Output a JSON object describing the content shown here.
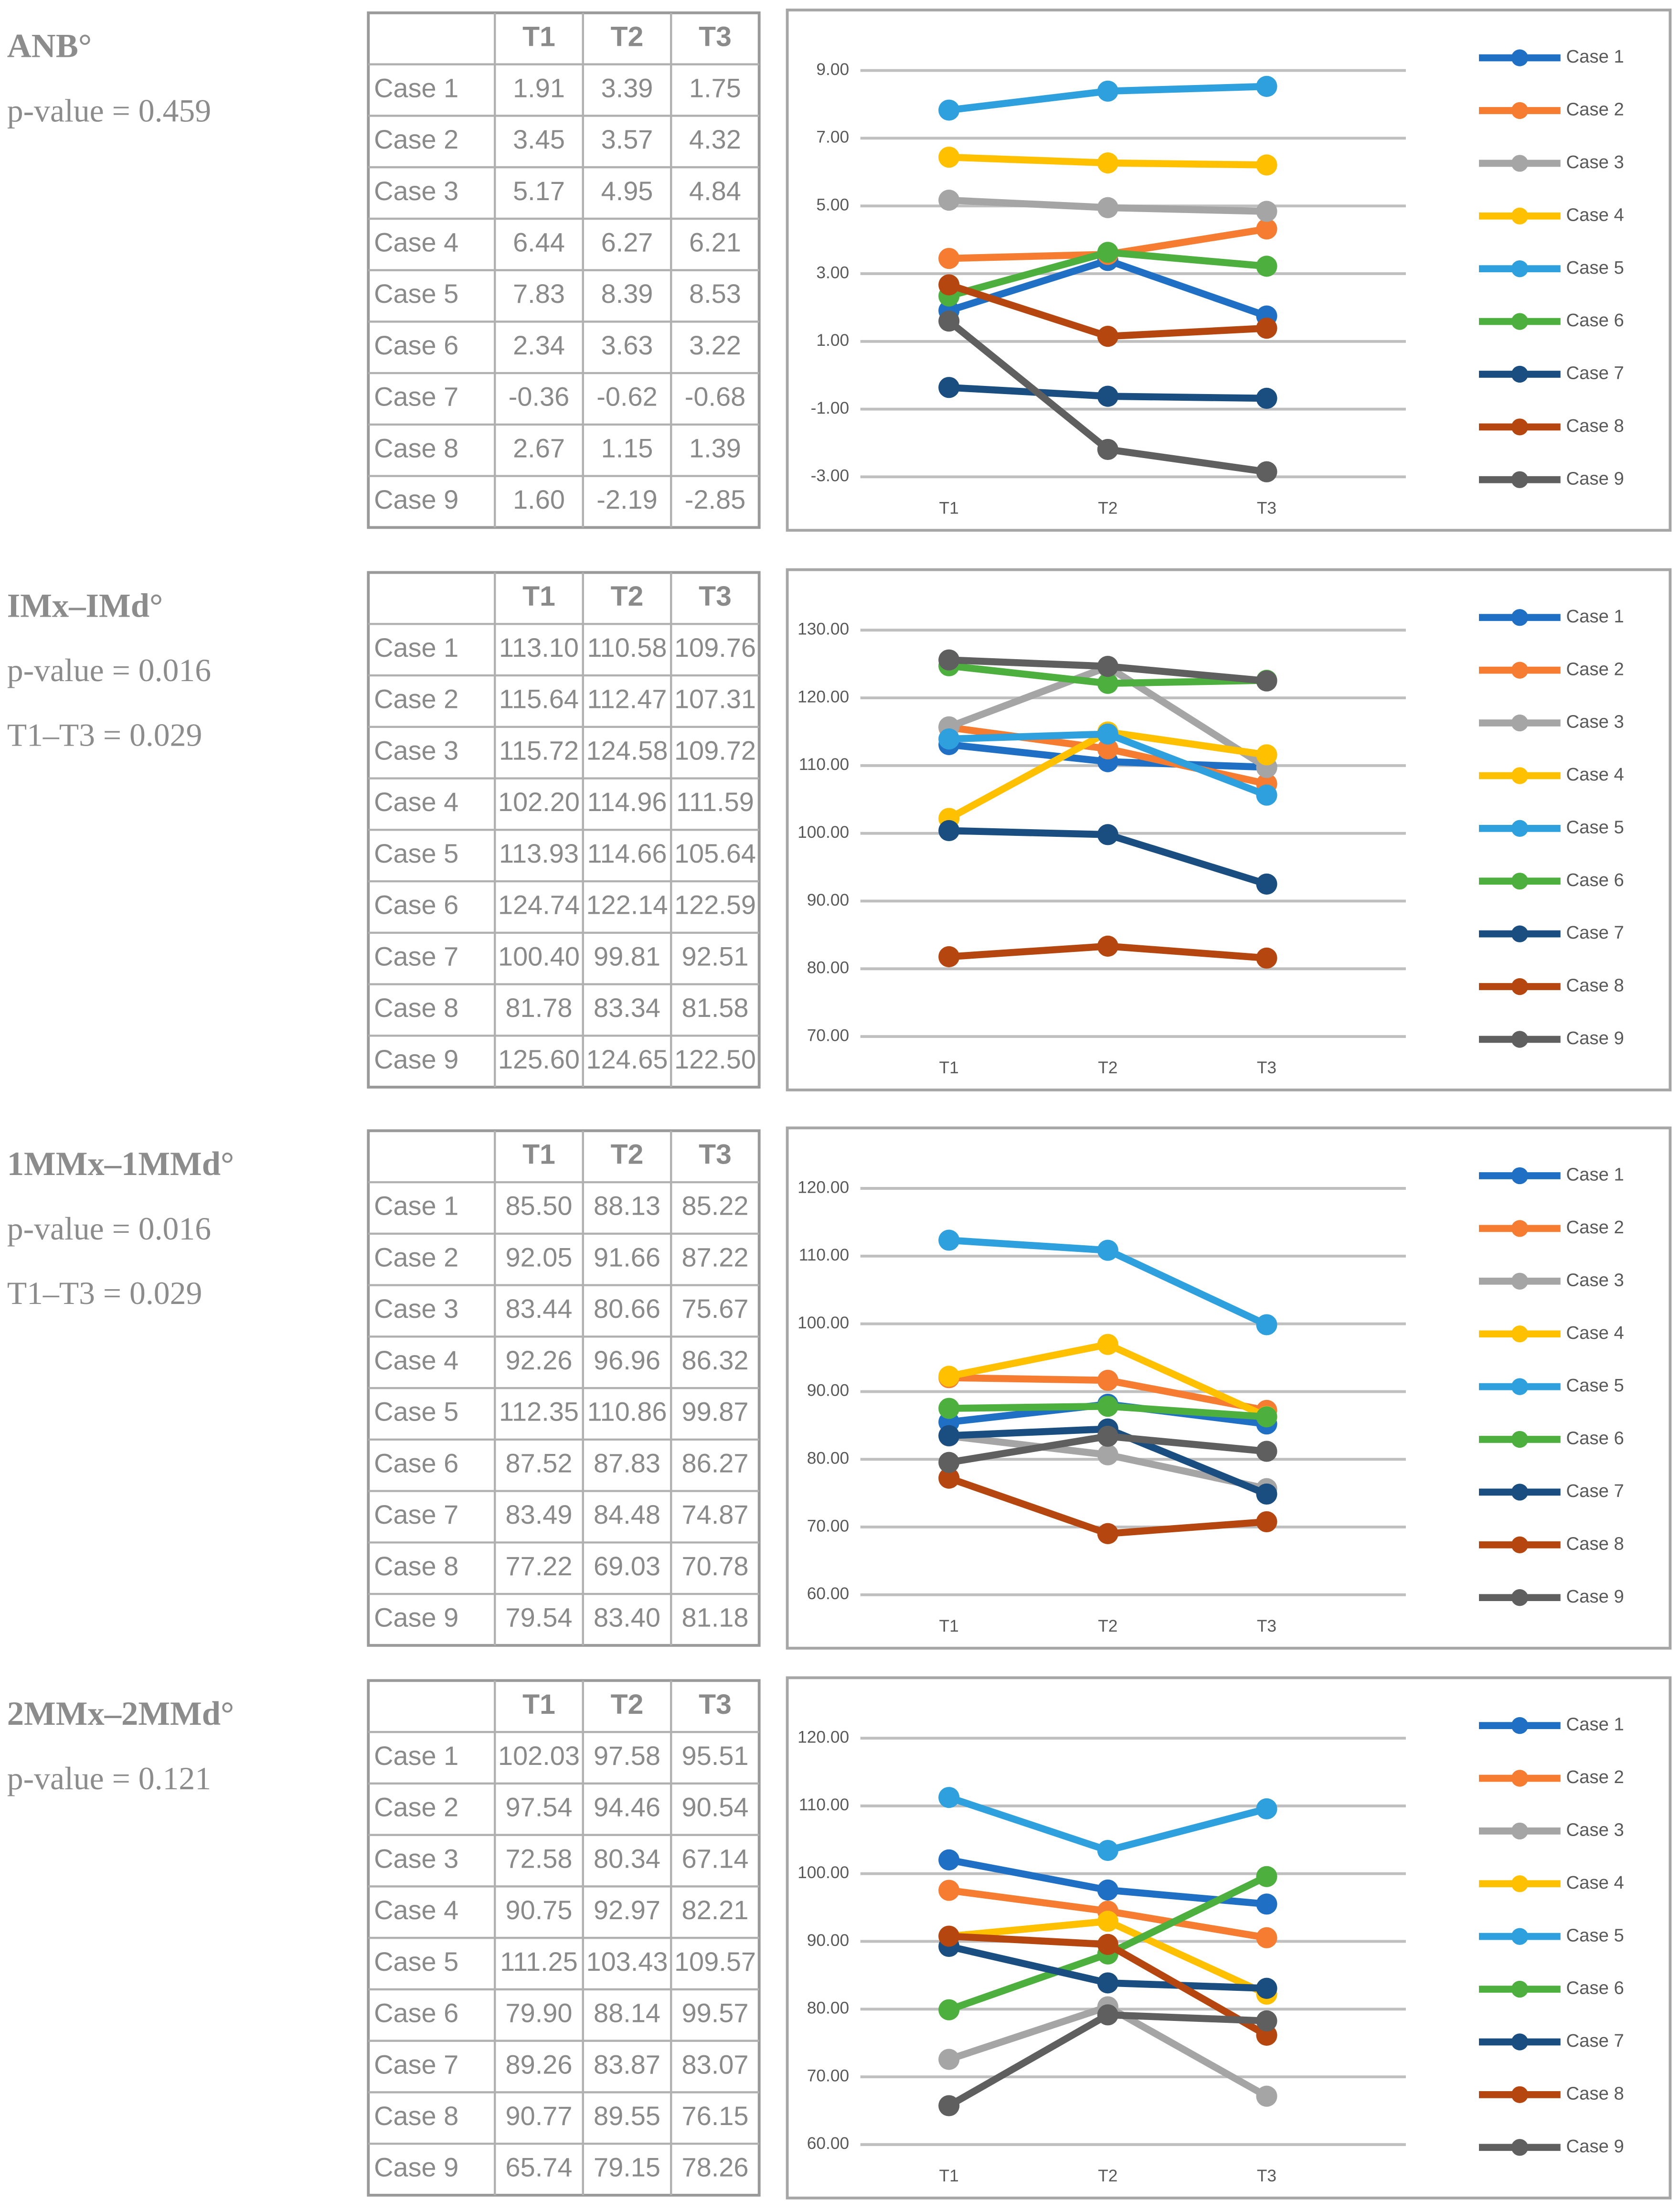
{
  "chart_data": [
    {
      "type": "line",
      "title": "ANB°",
      "annotations": [
        "p-value = 0.459"
      ],
      "categories": [
        "T1",
        "T2",
        "T3"
      ],
      "ylim": [
        -3,
        9
      ],
      "yticks": [
        {
          "value": -3,
          "label": "-3.00"
        },
        {
          "value": -1,
          "label": "-1.00"
        },
        {
          "value": 1,
          "label": "1.00"
        },
        {
          "value": 3,
          "label": "3.00"
        },
        {
          "value": 5,
          "label": "5.00"
        },
        {
          "value": 7,
          "label": "7.00"
        },
        {
          "value": 9,
          "label": "9.00"
        }
      ],
      "grid": true,
      "series": [
        {
          "name": "Case 1",
          "color": "#1f6fc5",
          "values": [
            1.91,
            3.39,
            1.75
          ],
          "value_labels": [
            "1.91",
            "3.39",
            "1.75"
          ]
        },
        {
          "name": "Case 2",
          "color": "#f57c30",
          "values": [
            3.45,
            3.57,
            4.32
          ],
          "value_labels": [
            "3.45",
            "3.57",
            "4.32"
          ]
        },
        {
          "name": "Case 3",
          "color": "#a5a5a5",
          "values": [
            5.17,
            4.95,
            4.84
          ],
          "value_labels": [
            "5.17",
            "4.95",
            "4.84"
          ]
        },
        {
          "name": "Case 4",
          "color": "#ffc000",
          "values": [
            6.44,
            6.27,
            6.21
          ],
          "value_labels": [
            "6.44",
            "6.27",
            "6.21"
          ]
        },
        {
          "name": "Case 5",
          "color": "#2ea0de",
          "values": [
            7.83,
            8.39,
            8.53
          ],
          "value_labels": [
            "7.83",
            "8.39",
            "8.53"
          ]
        },
        {
          "name": "Case 6",
          "color": "#4caf3e",
          "values": [
            2.34,
            3.63,
            3.22
          ],
          "value_labels": [
            "2.34",
            "3.63",
            "3.22"
          ]
        },
        {
          "name": "Case 7",
          "color": "#1a4d80",
          "values": [
            -0.36,
            -0.62,
            -0.68
          ],
          "value_labels": [
            "-0.36",
            "-0.62",
            "-0.68"
          ]
        },
        {
          "name": "Case 8",
          "color": "#b5460f",
          "values": [
            2.67,
            1.15,
            1.39
          ],
          "value_labels": [
            "2.67",
            "1.15",
            "1.39"
          ]
        },
        {
          "name": "Case 9",
          "color": "#5f5f5f",
          "values": [
            1.6,
            -2.19,
            -2.85
          ],
          "value_labels": [
            "1.60",
            "-2.19",
            "-2.85"
          ]
        }
      ]
    },
    {
      "type": "line",
      "title": "IMx–IMd°",
      "annotations": [
        "p-value = 0.016",
        "T1–T3 = 0.029"
      ],
      "categories": [
        "T1",
        "T2",
        "T3"
      ],
      "ylim": [
        70,
        130
      ],
      "yticks": [
        {
          "value": 70,
          "label": "70.00"
        },
        {
          "value": 80,
          "label": "80.00"
        },
        {
          "value": 90,
          "label": "90.00"
        },
        {
          "value": 100,
          "label": "100.00"
        },
        {
          "value": 110,
          "label": "110.00"
        },
        {
          "value": 120,
          "label": "120.00"
        },
        {
          "value": 130,
          "label": "130.00"
        }
      ],
      "grid": true,
      "series": [
        {
          "name": "Case 1",
          "color": "#1f6fc5",
          "values": [
            113.1,
            110.58,
            109.76
          ],
          "value_labels": [
            "113.10",
            "110.58",
            "109.76"
          ]
        },
        {
          "name": "Case 2",
          "color": "#f57c30",
          "values": [
            115.64,
            112.47,
            107.31
          ],
          "value_labels": [
            "115.64",
            "112.47",
            "107.31"
          ]
        },
        {
          "name": "Case 3",
          "color": "#a5a5a5",
          "values": [
            115.72,
            124.58,
            109.72
          ],
          "value_labels": [
            "115.72",
            "124.58",
            "109.72"
          ]
        },
        {
          "name": "Case 4",
          "color": "#ffc000",
          "values": [
            102.2,
            114.96,
            111.59
          ],
          "value_labels": [
            "102.20",
            "114.96",
            "111.59"
          ]
        },
        {
          "name": "Case 5",
          "color": "#2ea0de",
          "values": [
            113.93,
            114.66,
            105.64
          ],
          "value_labels": [
            "113.93",
            "114.66",
            "105.64"
          ]
        },
        {
          "name": "Case 6",
          "color": "#4caf3e",
          "values": [
            124.74,
            122.14,
            122.59
          ],
          "value_labels": [
            "124.74",
            "122.14",
            "122.59"
          ]
        },
        {
          "name": "Case 7",
          "color": "#1a4d80",
          "values": [
            100.4,
            99.81,
            92.51
          ],
          "value_labels": [
            "100.40",
            "99.81",
            "92.51"
          ]
        },
        {
          "name": "Case 8",
          "color": "#b5460f",
          "values": [
            81.78,
            83.34,
            81.58
          ],
          "value_labels": [
            "81.78",
            "83.34",
            "81.58"
          ]
        },
        {
          "name": "Case 9",
          "color": "#5f5f5f",
          "values": [
            125.6,
            124.65,
            122.5
          ],
          "value_labels": [
            "125.60",
            "124.65",
            "122.50"
          ]
        }
      ]
    },
    {
      "type": "line",
      "title": "1MMx–1MMd°",
      "annotations": [
        "p-value = 0.016",
        "T1–T3 = 0.029"
      ],
      "categories": [
        "T1",
        "T2",
        "T3"
      ],
      "ylim": [
        60,
        120
      ],
      "yticks": [
        {
          "value": 60,
          "label": "60.00"
        },
        {
          "value": 70,
          "label": "70.00"
        },
        {
          "value": 80,
          "label": "80.00"
        },
        {
          "value": 90,
          "label": "90.00"
        },
        {
          "value": 100,
          "label": "100.00"
        },
        {
          "value": 110,
          "label": "110.00"
        },
        {
          "value": 120,
          "label": "120.00"
        }
      ],
      "grid": true,
      "series": [
        {
          "name": "Case 1",
          "color": "#1f6fc5",
          "values": [
            85.5,
            88.13,
            85.22
          ],
          "value_labels": [
            "85.50",
            "88.13",
            "85.22"
          ]
        },
        {
          "name": "Case 2",
          "color": "#f57c30",
          "values": [
            92.05,
            91.66,
            87.22
          ],
          "value_labels": [
            "92.05",
            "91.66",
            "87.22"
          ]
        },
        {
          "name": "Case 3",
          "color": "#a5a5a5",
          "values": [
            83.44,
            80.66,
            75.67
          ],
          "value_labels": [
            "83.44",
            "80.66",
            "75.67"
          ]
        },
        {
          "name": "Case 4",
          "color": "#ffc000",
          "values": [
            92.26,
            96.96,
            86.32
          ],
          "value_labels": [
            "92.26",
            "96.96",
            "86.32"
          ]
        },
        {
          "name": "Case 5",
          "color": "#2ea0de",
          "values": [
            112.35,
            110.86,
            99.87
          ],
          "value_labels": [
            "112.35",
            "110.86",
            "99.87"
          ]
        },
        {
          "name": "Case 6",
          "color": "#4caf3e",
          "values": [
            87.52,
            87.83,
            86.27
          ],
          "value_labels": [
            "87.52",
            "87.83",
            "86.27"
          ]
        },
        {
          "name": "Case 7",
          "color": "#1a4d80",
          "values": [
            83.49,
            84.48,
            74.87
          ],
          "value_labels": [
            "83.49",
            "84.48",
            "74.87"
          ]
        },
        {
          "name": "Case 8",
          "color": "#b5460f",
          "values": [
            77.22,
            69.03,
            70.78
          ],
          "value_labels": [
            "77.22",
            "69.03",
            "70.78"
          ]
        },
        {
          "name": "Case 9",
          "color": "#5f5f5f",
          "values": [
            79.54,
            83.4,
            81.18
          ],
          "value_labels": [
            "79.54",
            "83.40",
            "81.18"
          ]
        }
      ]
    },
    {
      "type": "line",
      "title": "2MMx–2MMd°",
      "annotations": [
        "p-value = 0.121"
      ],
      "categories": [
        "T1",
        "T2",
        "T3"
      ],
      "ylim": [
        60,
        120
      ],
      "yticks": [
        {
          "value": 60,
          "label": "60.00"
        },
        {
          "value": 70,
          "label": "70.00"
        },
        {
          "value": 80,
          "label": "80.00"
        },
        {
          "value": 90,
          "label": "90.00"
        },
        {
          "value": 100,
          "label": "100.00"
        },
        {
          "value": 110,
          "label": "110.00"
        },
        {
          "value": 120,
          "label": "120.00"
        }
      ],
      "grid": true,
      "series": [
        {
          "name": "Case 1",
          "color": "#1f6fc5",
          "values": [
            102.03,
            97.58,
            95.51
          ],
          "value_labels": [
            "102.03",
            "97.58",
            "95.51"
          ]
        },
        {
          "name": "Case 2",
          "color": "#f57c30",
          "values": [
            97.54,
            94.46,
            90.54
          ],
          "value_labels": [
            "97.54",
            "94.46",
            "90.54"
          ]
        },
        {
          "name": "Case 3",
          "color": "#a5a5a5",
          "values": [
            72.58,
            80.34,
            67.14
          ],
          "value_labels": [
            "72.58",
            "80.34",
            "67.14"
          ]
        },
        {
          "name": "Case 4",
          "color": "#ffc000",
          "values": [
            90.75,
            92.97,
            82.21
          ],
          "value_labels": [
            "90.75",
            "92.97",
            "82.21"
          ]
        },
        {
          "name": "Case 5",
          "color": "#2ea0de",
          "values": [
            111.25,
            103.43,
            109.57
          ],
          "value_labels": [
            "111.25",
            "103.43",
            "109.57"
          ]
        },
        {
          "name": "Case 6",
          "color": "#4caf3e",
          "values": [
            79.9,
            88.14,
            99.57
          ],
          "value_labels": [
            "79.90",
            "88.14",
            "99.57"
          ]
        },
        {
          "name": "Case 7",
          "color": "#1a4d80",
          "values": [
            89.26,
            83.87,
            83.07
          ],
          "value_labels": [
            "89.26",
            "83.87",
            "83.07"
          ]
        },
        {
          "name": "Case 8",
          "color": "#b5460f",
          "values": [
            90.77,
            89.55,
            76.15
          ],
          "value_labels": [
            "90.77",
            "89.55",
            "76.15"
          ]
        },
        {
          "name": "Case 9",
          "color": "#5f5f5f",
          "values": [
            65.74,
            79.15,
            78.26
          ],
          "value_labels": [
            "65.74",
            "79.15",
            "78.26"
          ]
        }
      ]
    }
  ]
}
